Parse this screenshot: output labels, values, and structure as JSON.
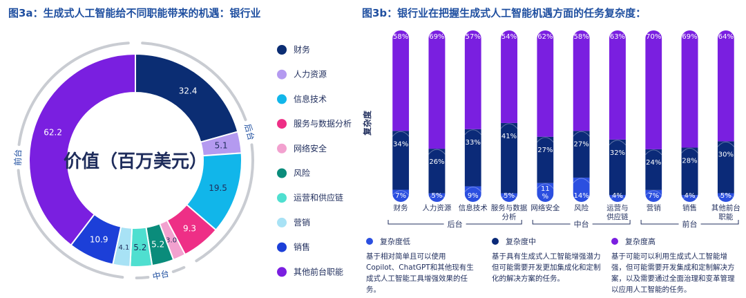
{
  "colors": {
    "title": "#1f4fa0",
    "text": "#1f2d5c",
    "ring": "#c9ccd2",
    "low": "#2b4fe0",
    "mid": "#0b2a78",
    "high": "#7a1fe0"
  },
  "chart_data": [
    {
      "type": "pie",
      "title": "图3a：生成式人工智能给不同职能带来的机遇：银行业",
      "center_label": "价值（百万美元）",
      "slices": [
        {
          "label": "财务",
          "value": 32.4,
          "value_label": "32.4",
          "color": "#0b2d73"
        },
        {
          "label": "人力资源",
          "value": 5.1,
          "value_label": "5.1",
          "color": "#b49af0"
        },
        {
          "label": "信息技术",
          "value": 19.5,
          "value_label": "19.5",
          "color": "#11b6ea"
        },
        {
          "label": "服务与数据分析",
          "value": 9.3,
          "value_label": "9.3",
          "color": "#ee2f86"
        },
        {
          "label": "网络安全",
          "value": 3.0,
          "value_label": "3.0",
          "color": "#f2a1cf"
        },
        {
          "label": "风险",
          "value": 5.2,
          "value_label": "5.2",
          "color": "#0a8c7b"
        },
        {
          "label": "运营和供应链",
          "value": 5.2,
          "value_label": "5.2",
          "color": "#4fdfd0"
        },
        {
          "label": "营销",
          "value": 4.1,
          "value_label": "4.1",
          "color": "#a8e2f5"
        },
        {
          "label": "销售",
          "value": 10.9,
          "value_label": "10.9",
          "color": "#1c3fd8"
        },
        {
          "label": "其他前台职能",
          "value": 62.2,
          "value_label": "62.2",
          "color": "#7a1fe0"
        }
      ],
      "groups": [
        {
          "label": "后台",
          "from": 0,
          "to": 3
        },
        {
          "label": "中台",
          "from": 4,
          "to": 6
        },
        {
          "label": "前台",
          "from": 7,
          "to": 9
        }
      ],
      "legend": "right"
    },
    {
      "type": "bar",
      "stacked": true,
      "title": "图3b：银行业在把握生成式人工智能机遇方面的任务复杂度：",
      "ylabel": "复杂度",
      "categories": [
        "财务",
        "人力资源",
        "信息技术",
        "服务与数据分析",
        "网络安全",
        "风险",
        "运营与供应链",
        "营销",
        "销售",
        "其他前台职能"
      ],
      "category_lines": [
        [
          "财务"
        ],
        [
          "人力资源"
        ],
        [
          "信息技术"
        ],
        [
          "服务与数据",
          "分析"
        ],
        [
          "网络安全"
        ],
        [
          "风险"
        ],
        [
          "运营与",
          "供应链"
        ],
        [
          "营销"
        ],
        [
          "销售"
        ],
        [
          "其他前台",
          "职能"
        ]
      ],
      "series": [
        {
          "name": "复杂度低",
          "values": [
            7,
            5,
            9,
            5,
            11,
            14,
            4,
            7,
            4,
            5
          ],
          "color": "#2b4fe0"
        },
        {
          "name": "复杂度中",
          "values": [
            34,
            26,
            33,
            41,
            27,
            27,
            32,
            24,
            28,
            30
          ],
          "color": "#0b2a78"
        },
        {
          "name": "复杂度高",
          "values": [
            58,
            69,
            57,
            54,
            62,
            58,
            63,
            70,
            69,
            64
          ],
          "color": "#7a1fe0"
        }
      ],
      "value_labels": [
        [
          "7%",
          "5%",
          "9%",
          "5%",
          "11\n%",
          "14%",
          "4%",
          "7%",
          "4%",
          "5%"
        ],
        [
          "34%",
          "26%",
          "33%",
          "41%",
          "27%",
          "27%",
          "32%",
          "24%",
          "28%",
          "30%"
        ],
        [
          "58%",
          "69%",
          "57%",
          "54%",
          "62%",
          "58%",
          "63%",
          "70%",
          "69%",
          "64%"
        ]
      ],
      "ylim": [
        0,
        100
      ],
      "groups": [
        {
          "label": "后台",
          "from": 0,
          "to": 3
        },
        {
          "label": "中台",
          "from": 4,
          "to": 6
        },
        {
          "label": "前台",
          "from": 7,
          "to": 9
        }
      ]
    }
  ],
  "notes": [
    {
      "key": "复杂度低",
      "text": "基于相对简单且可以使用Copilot、ChatGPT和其他现有生成式人工智能工具增强效果的任务。"
    },
    {
      "key": "复杂度中",
      "text": "基于具有生成式人工智能增强潜力但可能需要开发更加集成化和定制化的解决方案的任务。"
    },
    {
      "key": "复杂度高",
      "text": "基于可能可以利用生成式人工智能增强，但可能需要开发集成和定制解决方案，以及需要通过全面治理和变革管理以应用人工智能的任务。"
    }
  ]
}
